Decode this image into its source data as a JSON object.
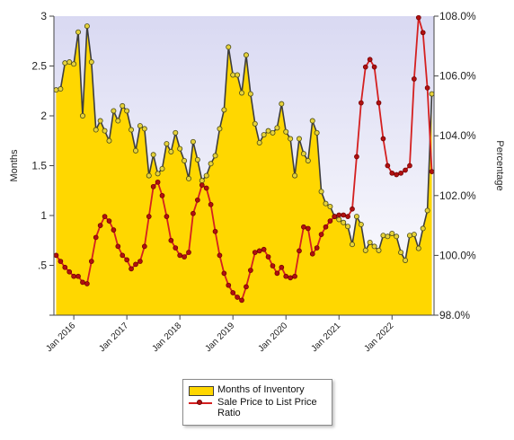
{
  "chart_data": {
    "type": "line",
    "title": "",
    "xlabel": "",
    "ylabel": "Months",
    "y2label": "Percentage",
    "ylim": [
      0,
      3
    ],
    "y2lim": [
      98.0,
      108.0
    ],
    "yticks": [
      "",
      ".5",
      "1",
      "1.5",
      "2",
      "2.5",
      "3"
    ],
    "y2ticks": [
      "98.0%",
      "100.0%",
      "102.0%",
      "104.0%",
      "106.0%",
      "108.0%"
    ],
    "xticks": [
      "Jan 2016",
      "Jan 2017",
      "Jan 2018",
      "Jan 2019",
      "Jan 2020",
      "Jan 2021",
      "Jan 2022"
    ],
    "x_start": "Sep 2015",
    "x_end": "Apr 2022",
    "legend_position": "bottom-center",
    "grid": false,
    "series": [
      {
        "name": "Months of Inventory",
        "axis": "left",
        "style": "area",
        "fill": "#ffd700",
        "line_color": "#3d3d3d",
        "marker_color": "#e6d23a",
        "values": [
          2.26,
          2.27,
          2.53,
          2.54,
          2.52,
          2.84,
          2.0,
          2.9,
          2.54,
          1.86,
          1.95,
          1.85,
          1.75,
          2.05,
          1.95,
          2.1,
          2.05,
          1.86,
          1.65,
          1.9,
          1.87,
          1.4,
          1.61,
          1.42,
          1.47,
          1.72,
          1.64,
          1.83,
          1.67,
          1.55,
          1.37,
          1.74,
          1.56,
          1.35,
          1.4,
          1.52,
          1.6,
          1.87,
          2.06,
          2.69,
          2.41,
          2.41,
          2.23,
          2.61,
          2.22,
          1.92,
          1.73,
          1.81,
          1.85,
          1.83,
          1.88,
          2.12,
          1.84,
          1.77,
          1.4,
          1.77,
          1.62,
          1.55,
          1.95,
          1.83,
          1.24,
          1.12,
          1.09,
          0.99,
          0.96,
          0.93,
          0.89,
          0.71,
          0.99,
          0.91,
          0.65,
          0.73,
          0.69,
          0.65,
          0.8,
          0.79,
          0.82,
          0.79,
          0.63,
          0.55,
          0.8,
          0.81,
          0.67,
          0.87,
          1.05,
          2.22
        ]
      },
      {
        "name": "Sale Price to List Price Ratio",
        "axis": "right",
        "style": "line",
        "line_color": "#d42020",
        "marker_color": "#b01010",
        "values": [
          100.0,
          99.8,
          99.6,
          99.45,
          99.3,
          99.3,
          99.1,
          99.05,
          99.8,
          100.6,
          101.0,
          101.3,
          101.15,
          100.85,
          100.3,
          100.0,
          99.85,
          99.55,
          99.7,
          99.8,
          100.3,
          101.3,
          102.3,
          102.45,
          102.0,
          101.3,
          100.5,
          100.25,
          100.0,
          99.95,
          100.1,
          101.4,
          101.85,
          102.35,
          102.25,
          101.7,
          100.8,
          100.0,
          99.4,
          99.0,
          98.75,
          98.6,
          98.5,
          98.95,
          99.5,
          100.1,
          100.15,
          100.2,
          99.95,
          99.65,
          99.4,
          99.6,
          99.3,
          99.25,
          99.3,
          100.15,
          100.95,
          100.9,
          100.05,
          100.25,
          100.7,
          100.95,
          101.15,
          101.3,
          101.35,
          101.35,
          101.3,
          101.55,
          103.3,
          105.1,
          106.3,
          106.55,
          106.3,
          105.1,
          103.9,
          103.0,
          102.75,
          102.7,
          102.75,
          102.85,
          103.0,
          105.9,
          107.95,
          107.45,
          105.6,
          102.8
        ]
      }
    ]
  },
  "legend": {
    "items": [
      {
        "label": "Months of Inventory"
      },
      {
        "label": "Sale Price to List Price Ratio"
      }
    ]
  }
}
